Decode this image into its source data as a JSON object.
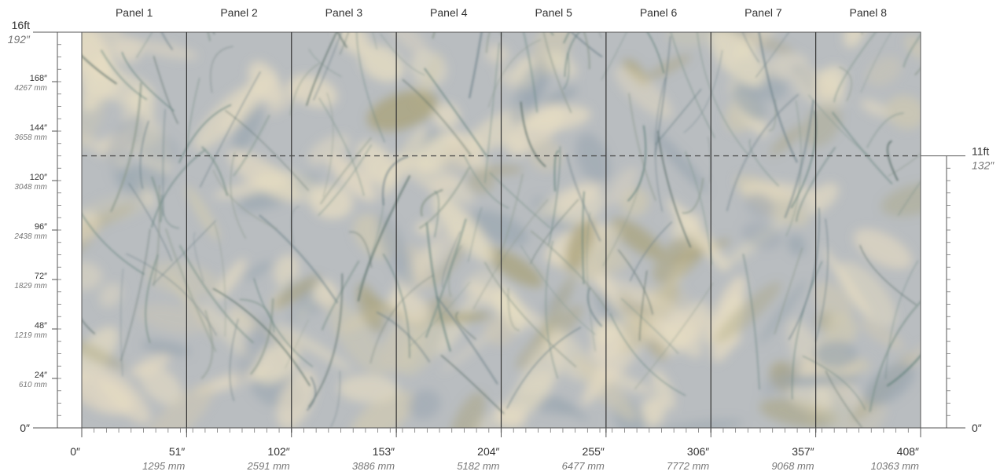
{
  "panels": [
    "Panel 1",
    "Panel 2",
    "Panel 3",
    "Panel 4",
    "Panel 5",
    "Panel 6",
    "Panel 7",
    "Panel 8"
  ],
  "left_scale": {
    "top_ft": "16ft",
    "top_in": "192″",
    "zero": "0″",
    "ticks": [
      {
        "value": 168,
        "in": "168″",
        "mm": "4267 mm"
      },
      {
        "value": 144,
        "in": "144″",
        "mm": "3658 mm"
      },
      {
        "value": 120,
        "in": "120″",
        "mm": "3048 mm"
      },
      {
        "value": 96,
        "in": "96″",
        "mm": "2438 mm"
      },
      {
        "value": 72,
        "in": "72″",
        "mm": "1829 mm"
      },
      {
        "value": 48,
        "in": "48″",
        "mm": "1219 mm"
      },
      {
        "value": 24,
        "in": "24″",
        "mm": "610 mm"
      }
    ]
  },
  "right_scale": {
    "ft": "11ft",
    "in": "132″",
    "value": 132,
    "zero": "0″"
  },
  "bottom_scale": {
    "ticks": [
      {
        "value": 0,
        "in": "0″",
        "mm": ""
      },
      {
        "value": 51,
        "in": "51″",
        "mm": "1295 mm"
      },
      {
        "value": 102,
        "in": "102″",
        "mm": "2591 mm"
      },
      {
        "value": 153,
        "in": "153″",
        "mm": "3886 mm"
      },
      {
        "value": 204,
        "in": "204″",
        "mm": "5182 mm"
      },
      {
        "value": 255,
        "in": "255″",
        "mm": "6477 mm"
      },
      {
        "value": 306,
        "in": "306″",
        "mm": "7772 mm"
      },
      {
        "value": 357,
        "in": "357″",
        "mm": "9068 mm"
      },
      {
        "value": 408,
        "in": "408″",
        "mm": "10363 mm"
      }
    ]
  },
  "mural": {
    "total_width_in": 408,
    "total_height_in": 192,
    "panel_width_in": 51,
    "cut_height_in": 132,
    "colors": {
      "base": "#b9bdc0",
      "cream": "#e6dcc2",
      "olive": "#a9a27a",
      "grey_blue": "#9aa6b0",
      "teal": "#5f7f7a",
      "dark": "#4f6660"
    }
  }
}
